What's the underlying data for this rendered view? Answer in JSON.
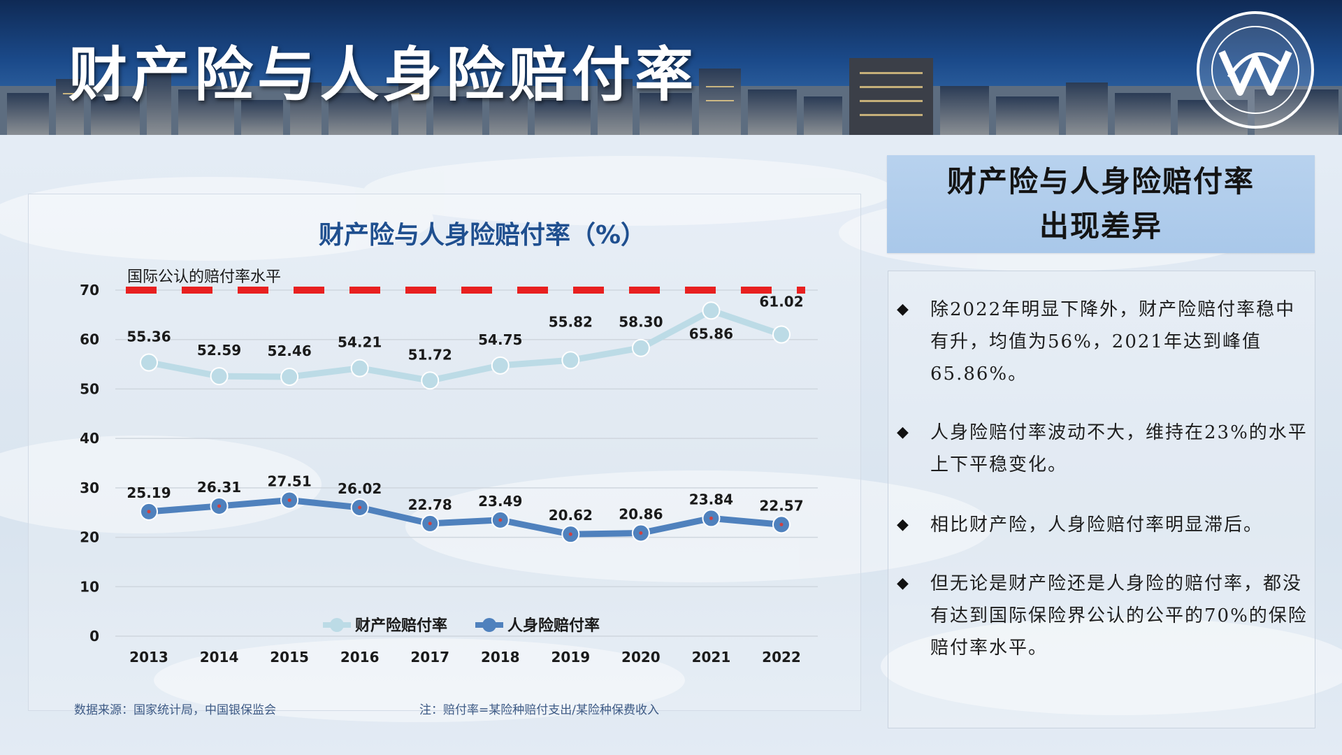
{
  "page": {
    "title": "财产险与人身险赔付率",
    "side_heading": [
      "财产险与人身险赔付率",
      "出现差异"
    ]
  },
  "notes": [
    "除2022年明显下降外，财产险赔付率稳中有升，均值为56%，2021年达到峰值65.86%。",
    "人身险赔付率波动不大，维持在23%的水平上下平稳变化。",
    "相比财产险，人身险赔付率明显滞后。",
    "但无论是财产险还是人身险的赔付率，都没有达到国际保险界公认的公平的70%的保险赔付率水平。"
  ],
  "footnotes": {
    "source": "数据来源：国家统计局，中国银保监会",
    "note": "注：赔付率=某险种赔付支出/某险种保费收入"
  },
  "colors": {
    "property": "#bcdbe6",
    "life": "#4f81bd",
    "reference": "#e82020",
    "title": "#1f4f8f",
    "point_dot": "#d04040"
  },
  "icons": {
    "logo": "circular-seal-logo-icon",
    "bullet": "diamond-bullet-icon"
  },
  "chart_data": {
    "type": "line",
    "title": "财产险与人身险赔付率（%）",
    "categories": [
      "2013",
      "2014",
      "2015",
      "2016",
      "2017",
      "2018",
      "2019",
      "2020",
      "2021",
      "2022"
    ],
    "series": [
      {
        "name": "财产险赔付率",
        "values": [
          55.36,
          52.59,
          52.46,
          54.21,
          51.72,
          54.75,
          55.82,
          58.3,
          65.86,
          61.02
        ],
        "labels": [
          "55.36",
          "52.59",
          "52.46",
          "54.21",
          "51.72",
          "54.75",
          "55.82",
          "58.30",
          "65.86",
          "61.02"
        ]
      },
      {
        "name": "人身险赔付率",
        "values": [
          25.19,
          26.31,
          27.51,
          26.02,
          22.78,
          23.49,
          20.62,
          20.86,
          23.84,
          22.57
        ],
        "labels": [
          "25.19",
          "26.31",
          "27.51",
          "26.02",
          "22.78",
          "23.49",
          "20.62",
          "20.86",
          "23.84",
          "22.57"
        ]
      }
    ],
    "reference_line": {
      "value": 70,
      "label": "国际公认的赔付率水平"
    },
    "ylim": [
      0,
      70
    ],
    "yticks": [
      0,
      10,
      20,
      30,
      40,
      50,
      60,
      70
    ],
    "grid": true,
    "legend": "bottom",
    "xlabel": "",
    "ylabel": ""
  }
}
